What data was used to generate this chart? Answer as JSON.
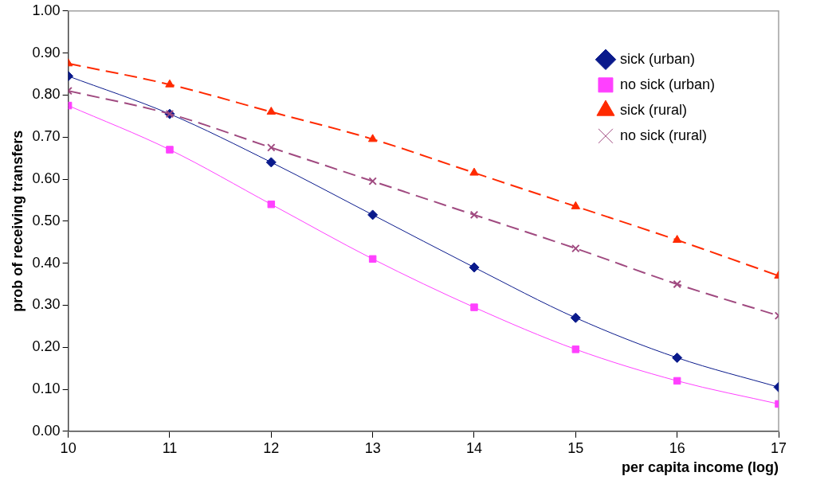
{
  "chart_data": {
    "type": "line",
    "xlabel": "per capita income (log)",
    "ylabel": "prob of receiving transfers",
    "x": [
      10,
      11,
      12,
      13,
      14,
      15,
      16,
      17
    ],
    "xlim": [
      10,
      17
    ],
    "xticks": [
      10,
      11,
      12,
      13,
      14,
      15,
      16,
      17
    ],
    "ylim": [
      0,
      1
    ],
    "yticks": [
      {
        "value": 0,
        "label": "0.00"
      },
      {
        "value": 0.1,
        "label": "0.10"
      },
      {
        "value": 0.2,
        "label": "0.20"
      },
      {
        "value": 0.3,
        "label": "0.30"
      },
      {
        "value": 0.4,
        "label": "0.40"
      },
      {
        "value": 0.5,
        "label": "0.50"
      },
      {
        "value": 0.6,
        "label": "0.60"
      },
      {
        "value": 0.7,
        "label": "0.70"
      },
      {
        "value": 0.8,
        "label": "0.80"
      },
      {
        "value": 0.9,
        "label": "0.90"
      },
      {
        "value": 1,
        "label": "1.00"
      }
    ],
    "grid": false,
    "legend": "top right",
    "series": [
      {
        "name": "sick (urban)",
        "color": "#0a1a8c",
        "marker": "diamond",
        "line_style": "solid",
        "values": [
          0.845,
          0.755,
          0.64,
          0.515,
          0.39,
          0.27,
          0.175,
          0.105
        ]
      },
      {
        "name": "no sick (urban)",
        "color": "#ff40ff",
        "marker": "square",
        "line_style": "solid",
        "values": [
          0.775,
          0.67,
          0.54,
          0.41,
          0.295,
          0.195,
          0.12,
          0.065
        ]
      },
      {
        "name": "sick (rural)",
        "color": "#ff2a00",
        "marker": "triangle",
        "line_style": "dashed",
        "values": [
          0.875,
          0.825,
          0.76,
          0.695,
          0.615,
          0.535,
          0.455,
          0.37
        ]
      },
      {
        "name": "no sick (rural)",
        "color": "#a04a80",
        "marker": "cross",
        "line_style": "dashed",
        "values": [
          0.81,
          0.755,
          0.675,
          0.595,
          0.515,
          0.435,
          0.35,
          0.275
        ]
      }
    ]
  }
}
